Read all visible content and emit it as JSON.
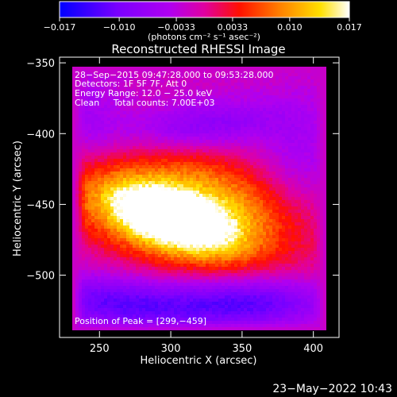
{
  "chart_data": {
    "type": "heatmap",
    "title": "Reconstructed RHESSI Image",
    "xlabel": "Heliocentric X (arcsec)",
    "ylabel": "Heliocentric Y (arcsec)",
    "xlim": [
      222,
      418
    ],
    "ylim": [
      -544,
      -346
    ],
    "x_ticks": [
      250,
      300,
      350,
      400
    ],
    "y_ticks": [
      -350,
      -400,
      -450,
      -500
    ],
    "x_tick_labels": [
      "250",
      "300",
      "350",
      "400"
    ],
    "y_tick_labels": [
      "−350",
      "−400",
      "−450",
      "−500"
    ],
    "colorbar": {
      "range": [
        -0.017,
        0.017
      ],
      "ticks": [
        -0.017,
        -0.01,
        -0.0033,
        0.0033,
        0.01,
        0.017
      ],
      "tick_labels": [
        "−0.017",
        "−0.010",
        "−0.0033",
        "0.0033",
        "0.010",
        "0.017"
      ],
      "unit_label": "(photons cm⁻² s⁻¹ asec⁻²)",
      "colormap": [
        "#0000ff",
        "#7c00ff",
        "#b000ff",
        "#e000c0",
        "#ff0000",
        "#ff8000",
        "#ffd800",
        "#ffffff"
      ]
    },
    "info_lines": [
      "28−Sep−2015 09:47:28.000 to 09:53:28.000",
      "Detectors: 1F 5F 7F, Att 0",
      "Energy Range: 12.0 − 25.0 keV",
      "Clean     Total counts: 7.00E+03"
    ],
    "peak_label": "Position of Peak = [299,−459]",
    "peak": {
      "x": 299,
      "y": -459
    },
    "grid": false
  },
  "footer": {
    "timestamp": "23−May−2022 10:43"
  }
}
